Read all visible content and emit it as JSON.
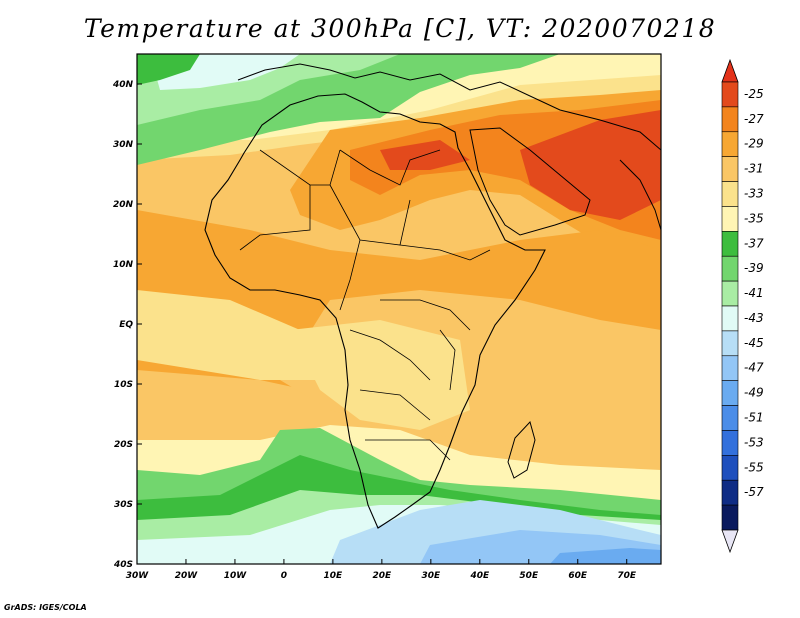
{
  "title": "Temperature at 300hPa [C], VT: 2020070218",
  "credit": "GrADS: IGES/COLA",
  "map": {
    "lat_labels": [
      "40N",
      "30N",
      "20N",
      "10N",
      "EQ",
      "10S",
      "20S",
      "30S",
      "40S"
    ],
    "lat_values": [
      40,
      30,
      20,
      10,
      0,
      -10,
      -20,
      -30,
      -40
    ],
    "lon_labels": [
      "30W",
      "20W",
      "10W",
      "0",
      "10E",
      "20E",
      "30E",
      "40E",
      "50E",
      "60E",
      "70E"
    ],
    "lon_values": [
      -30,
      -20,
      -10,
      0,
      10,
      20,
      30,
      40,
      50,
      60,
      70
    ],
    "lat_range": [
      -40,
      45
    ],
    "lon_range": [
      -30,
      77
    ]
  },
  "colorbar": {
    "labels": [
      "-25",
      "-27",
      "-29",
      "-31",
      "-33",
      "-35",
      "-37",
      "-39",
      "-41",
      "-43",
      "-45",
      "-47",
      "-49",
      "-51",
      "-53",
      "-55",
      "-57"
    ],
    "colors": [
      "#e34a1c",
      "#f3841d",
      "#f7a733",
      "#fac665",
      "#fbe28c",
      "#fff5b4",
      "#3dbd3e",
      "#72d66e",
      "#a9eda4",
      "#e1fbf6",
      "#b7def6",
      "#93c6f6",
      "#6aabf0",
      "#4b8de8",
      "#3370dc",
      "#1e4fbd",
      "#0f2c85",
      "#0a1a5e"
    ],
    "top_triangle": "#e3321a",
    "bottom_triangle": "#e8e6f5"
  }
}
